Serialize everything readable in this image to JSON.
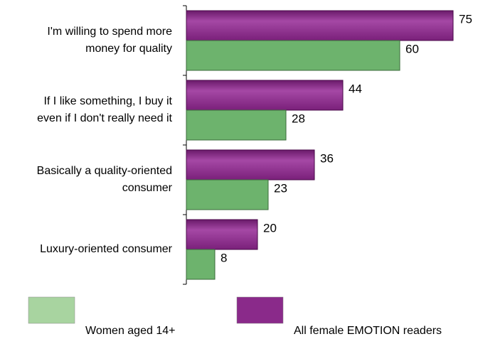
{
  "chart_data": {
    "type": "hbar",
    "categories": [
      "I'm willing to spend more\nmoney for quality",
      "If I like something, I buy it\neven if I don't really need it",
      "Basically a quality-oriented\nconsumer",
      "Luxury-oriented consumer"
    ],
    "series": [
      {
        "name": "Women aged 14+",
        "color": "#6db36d",
        "values": [
          60,
          28,
          23,
          8
        ]
      },
      {
        "name": "All female EMOTION readers",
        "color": "#8a2a8a",
        "values": [
          75,
          44,
          36,
          20
        ]
      }
    ],
    "legend": "bottom"
  }
}
